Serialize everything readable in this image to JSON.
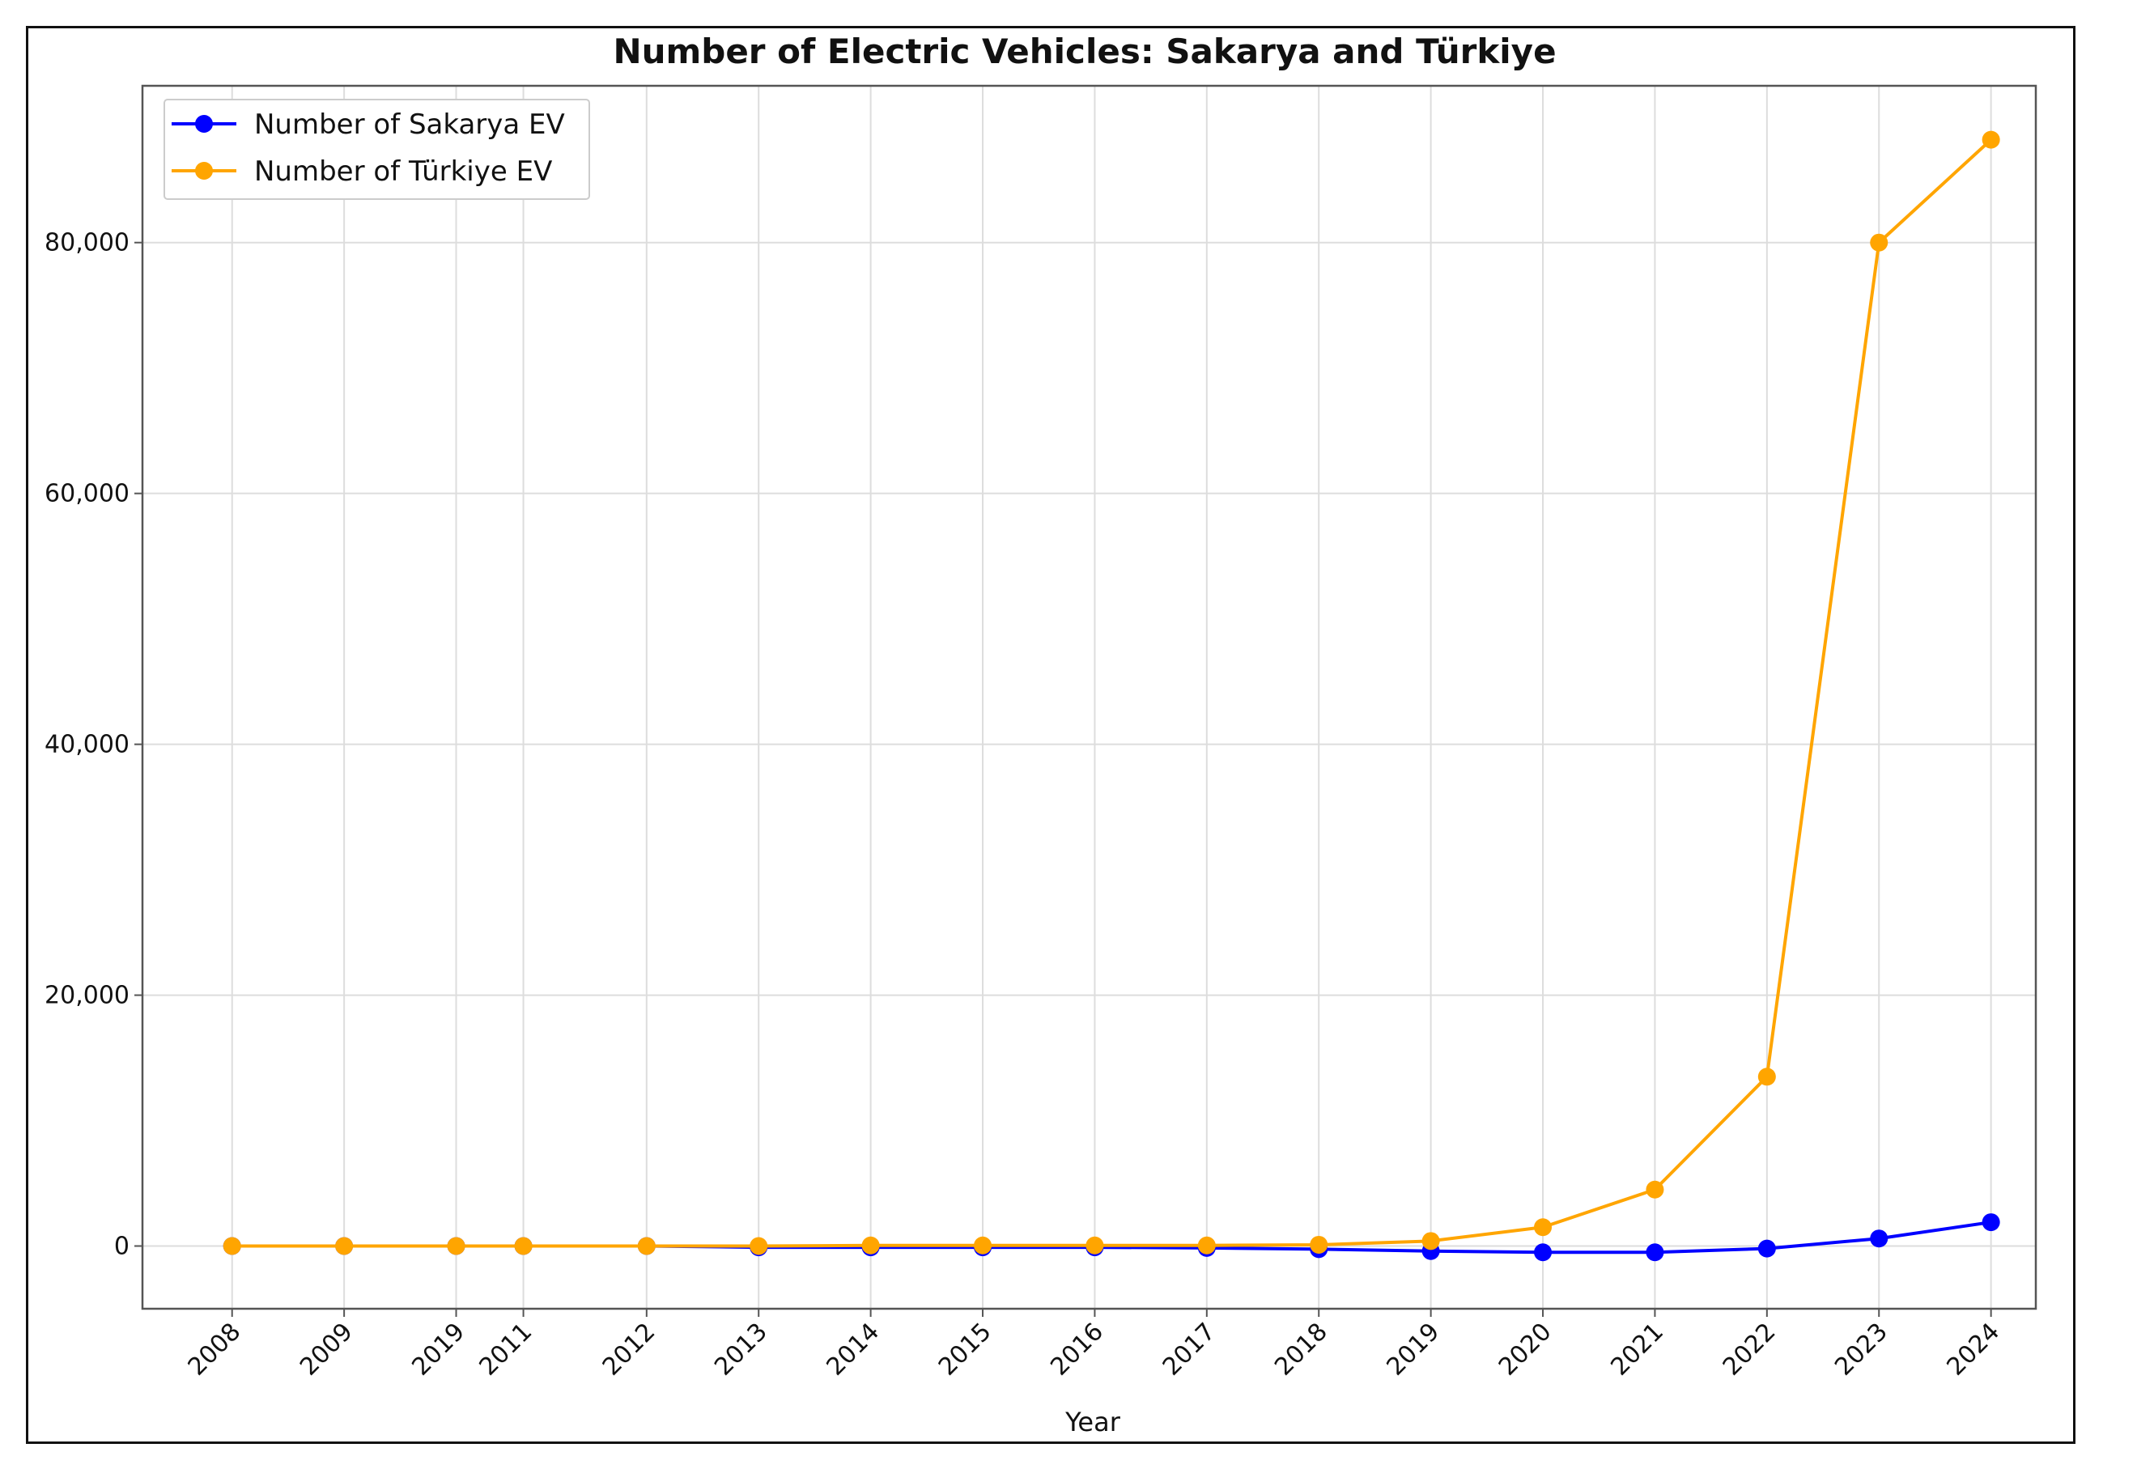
{
  "chart_data": {
    "type": "line",
    "title": "Number of Electric Vehicles: Sakarya and Türkiye",
    "xlabel": "Year",
    "ylabel": "",
    "categories": [
      "2008",
      "2009",
      "2019",
      "2011",
      "2012",
      "2013",
      "2014",
      "2015",
      "2016",
      "2017",
      "2018",
      "2019",
      "2020",
      "2021",
      "2022",
      "2023",
      "2024"
    ],
    "x_positions": [
      2008,
      2009,
      2010,
      2010.6,
      2011.7,
      2012.7,
      2013.7,
      2014.7,
      2015.7,
      2016.7,
      2017.7,
      2018.7,
      2019.7,
      2020.7,
      2021.7,
      2022.7,
      2023.7
    ],
    "xlim": [
      2007.2,
      2024.1
    ],
    "ylim": [
      -5000,
      92500
    ],
    "yticks": [
      0,
      20000,
      40000,
      60000,
      80000
    ],
    "ytick_labels": [
      "0",
      "20,000",
      "40,000",
      "60,000",
      "80,000"
    ],
    "grid": true,
    "legend_position": "top-left",
    "series": [
      {
        "name": "Number of Sakarya EV",
        "color": "#0000ff",
        "values": [
          0,
          0,
          0,
          0,
          0,
          -100,
          -100,
          -100,
          -100,
          -150,
          -250,
          -400,
          -500,
          -500,
          -200,
          600,
          1900
        ]
      },
      {
        "name": "Number of Türkiye EV",
        "color": "#ffa500",
        "values": [
          0,
          0,
          0,
          0,
          0,
          0,
          50,
          50,
          50,
          50,
          100,
          400,
          1500,
          4500,
          13500,
          80000,
          88200
        ]
      }
    ]
  }
}
